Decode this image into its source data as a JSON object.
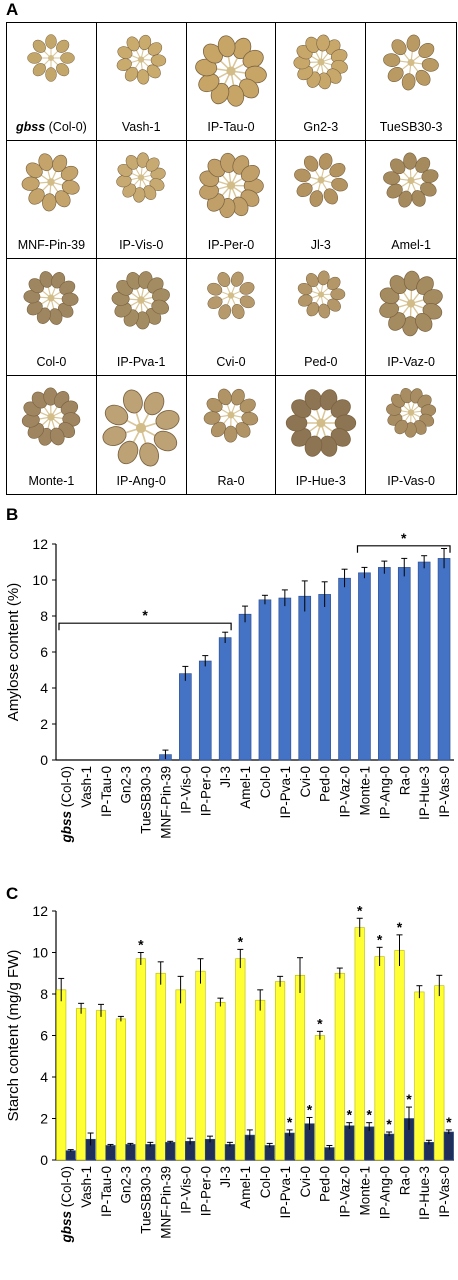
{
  "panel_labels": {
    "a": "A",
    "b": "B",
    "c": "C"
  },
  "panel_a": {
    "plants": [
      {
        "label": "gbss",
        "suffix": " (Col-0)"
      },
      {
        "label": "Vash-1"
      },
      {
        "label": "IP-Tau-0"
      },
      {
        "label": "Gn2-3"
      },
      {
        "label": "TueSB30-3"
      },
      {
        "label": "MNF-Pin-39"
      },
      {
        "label": "IP-Vis-0"
      },
      {
        "label": "IP-Per-0"
      },
      {
        "label": "Jl-3"
      },
      {
        "label": "Amel-1"
      },
      {
        "label": "Col-0"
      },
      {
        "label": "IP-Pva-1"
      },
      {
        "label": "Cvi-0"
      },
      {
        "label": "Ped-0"
      },
      {
        "label": "IP-Vaz-0"
      },
      {
        "label": "Monte-1"
      },
      {
        "label": "IP-Ang-0"
      },
      {
        "label": "Ra-0"
      },
      {
        "label": "IP-Hue-3"
      },
      {
        "label": "IP-Vas-0"
      }
    ]
  },
  "chart_data": [
    {
      "type": "bar",
      "ylabel": "Amylose content (%)",
      "ylim": [
        0,
        12
      ],
      "yticks": [
        0,
        2,
        4,
        6,
        8,
        10,
        12
      ],
      "categories": [
        "gbss (Col-0)",
        "Vash-1",
        "IP-Tau-0",
        "Gn2-3",
        "TueSB30-3",
        "MNF-Pin-39",
        "IP-Vis-0",
        "IP-Per-0",
        "Jl-3",
        "Amel-1",
        "Col-0",
        "IP-Pva-1",
        "Cvi-0",
        "Ped-0",
        "IP-Vaz-0",
        "Monte-1",
        "IP-Ang-0",
        "Ra-0",
        "IP-Hue-3",
        "IP-Vas-0"
      ],
      "series": [
        {
          "values": [
            0,
            0,
            0,
            0,
            0,
            0.3,
            4.8,
            5.5,
            6.8,
            8.1,
            8.9,
            9.0,
            9.1,
            9.2,
            10.1,
            10.4,
            10.7,
            10.7,
            11.0,
            11.2
          ],
          "errors": [
            0,
            0,
            0,
            0,
            0,
            0.25,
            0.4,
            0.3,
            0.3,
            0.45,
            0.25,
            0.45,
            0.85,
            0.7,
            0.5,
            0.3,
            0.35,
            0.5,
            0.35,
            0.55
          ],
          "color": "#4472c4"
        }
      ],
      "brackets": [
        {
          "from": "gbss (Col-0)",
          "to": "Jl-3",
          "y": 7.6,
          "label": "*"
        },
        {
          "from": "Monte-1",
          "to": "IP-Vas-0",
          "y": 11.9,
          "label": "*"
        }
      ],
      "grid": false
    },
    {
      "type": "bar",
      "ylabel": "Starch content (mg/g FW)",
      "ylim": [
        0,
        12
      ],
      "yticks": [
        0,
        2,
        4,
        6,
        8,
        10,
        12
      ],
      "categories": [
        "gbss (Col-0)",
        "Vash-1",
        "IP-Tau-0",
        "Gn2-3",
        "TueSB30-3",
        "MNF-Pin-39",
        "IP-Vis-0",
        "IP-Per-0",
        "Jl-3",
        "Amel-1",
        "Col-0",
        "IP-Pva-1",
        "Cvi-0",
        "Ped-0",
        "IP-Vaz-0",
        "Monte-1",
        "IP-Ang-0",
        "Ra-0",
        "IP-Hue-3",
        "IP-Vas-0"
      ],
      "series": [
        {
          "values": [
            8.2,
            7.3,
            7.2,
            6.8,
            9.7,
            9.0,
            8.2,
            9.1,
            7.6,
            9.7,
            7.7,
            8.6,
            8.9,
            6.0,
            9.0,
            11.2,
            9.8,
            10.1,
            8.1,
            8.4
          ],
          "errors": [
            0.55,
            0.25,
            0.3,
            0.12,
            0.3,
            0.55,
            0.65,
            0.6,
            0.2,
            0.45,
            0.5,
            0.25,
            0.85,
            0.2,
            0.25,
            0.45,
            0.45,
            0.75,
            0.3,
            0.5
          ],
          "stars": [
            false,
            false,
            false,
            false,
            true,
            false,
            false,
            false,
            false,
            true,
            false,
            false,
            false,
            true,
            false,
            true,
            true,
            true,
            false,
            false
          ],
          "color": "#ffff33"
        },
        {
          "values": [
            0.45,
            1.0,
            0.7,
            0.75,
            0.75,
            0.85,
            0.9,
            1.0,
            0.75,
            1.2,
            0.7,
            1.3,
            1.75,
            0.6,
            1.65,
            1.6,
            1.25,
            2.0,
            0.85,
            1.35
          ],
          "errors": [
            0.05,
            0.3,
            0.05,
            0.05,
            0.1,
            0.05,
            0.15,
            0.15,
            0.1,
            0.25,
            0.1,
            0.15,
            0.3,
            0.1,
            0.15,
            0.2,
            0.1,
            0.55,
            0.1,
            0.1
          ],
          "stars": [
            false,
            false,
            false,
            false,
            false,
            false,
            false,
            false,
            false,
            false,
            false,
            true,
            true,
            false,
            true,
            true,
            true,
            true,
            false,
            true
          ],
          "color": "#1f2f5a"
        }
      ],
      "grid": false
    }
  ]
}
